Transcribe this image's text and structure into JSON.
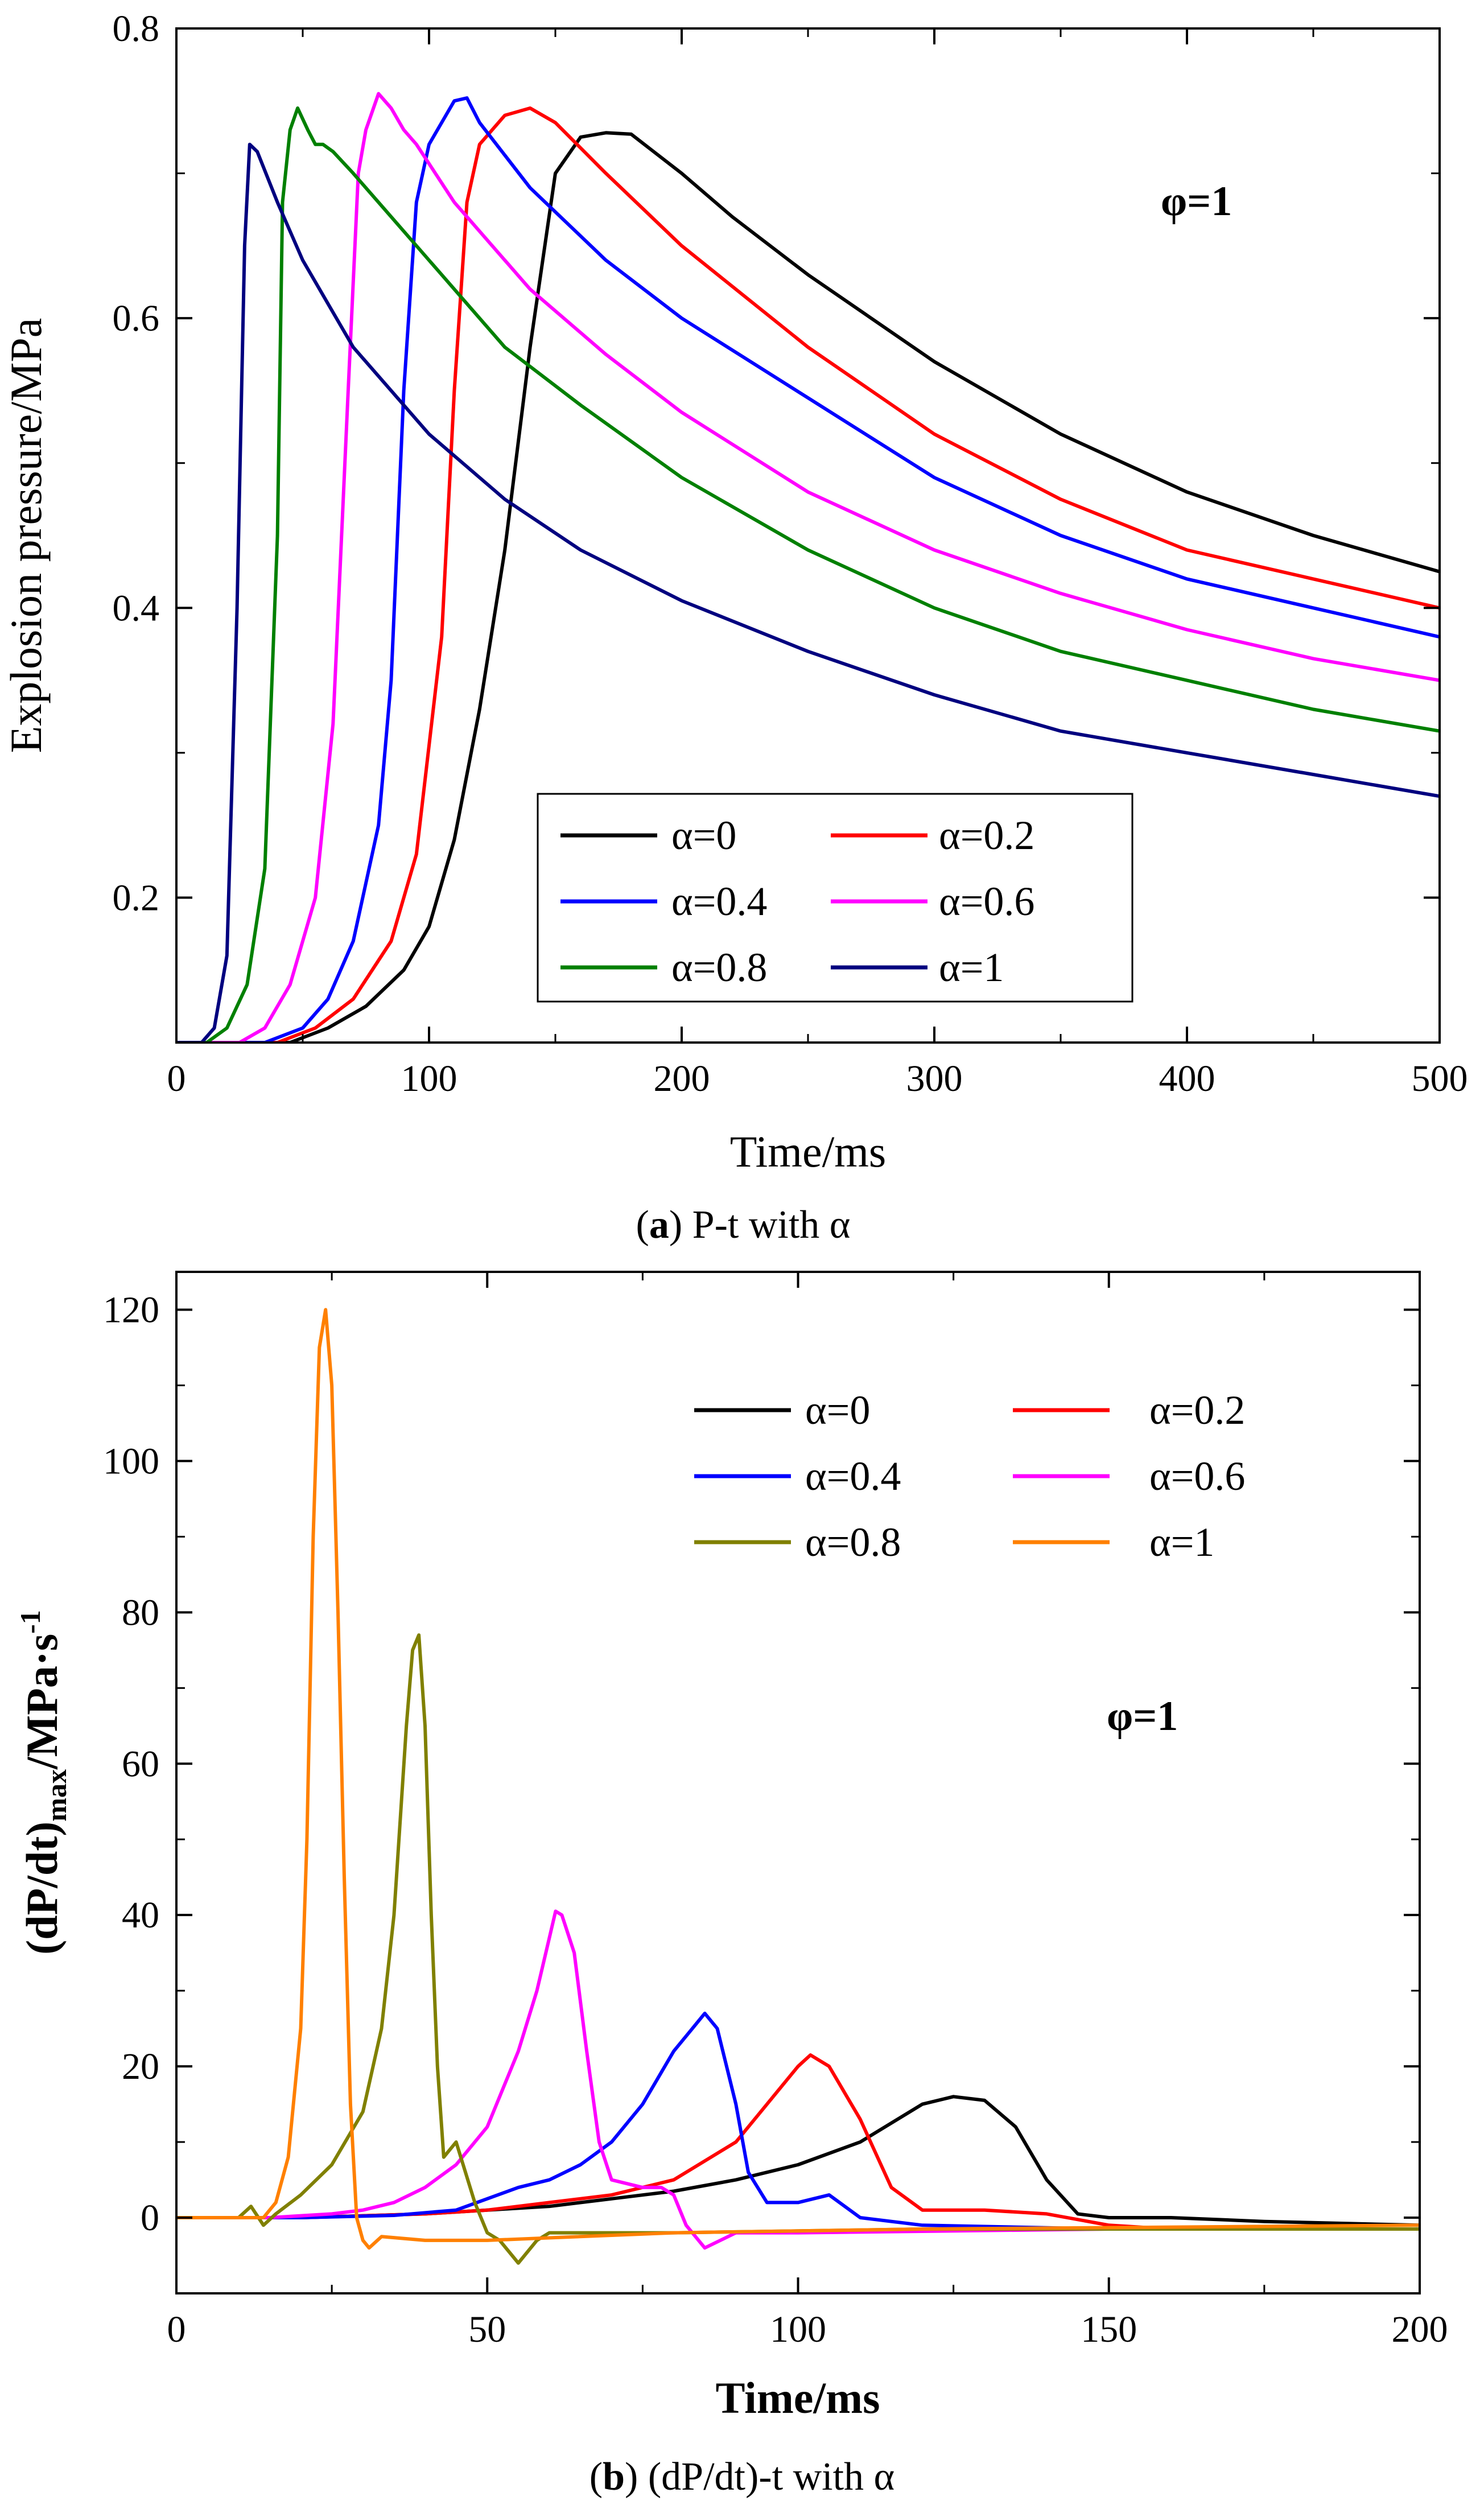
{
  "chart_data": [
    {
      "type": "line",
      "caption": {
        "tag": "a",
        "text": " P-t with α"
      },
      "xlabel": "Time/ms",
      "ylabel": "Explosion pressure/MPa",
      "xlim": [
        0,
        500
      ],
      "ylim": [
        0.1,
        0.8
      ],
      "x_ticks": [
        0,
        100,
        200,
        300,
        400,
        500
      ],
      "y_ticks": [
        0.2,
        0.4,
        0.6,
        0.8
      ],
      "y_tick_labels": [
        "0.2",
        "0.4",
        "0.6",
        "0.8"
      ],
      "annotation": "φ=1",
      "legend_position": "bottom-center",
      "series": [
        {
          "name": "α=0",
          "color": "#000000",
          "x": [
            0,
            30,
            45,
            60,
            75,
            90,
            100,
            110,
            120,
            130,
            140,
            150,
            160,
            170,
            180,
            200,
            220,
            250,
            300,
            350,
            400,
            450,
            500
          ],
          "values": [
            0.1,
            0.1,
            0.1,
            0.11,
            0.125,
            0.15,
            0.18,
            0.24,
            0.33,
            0.44,
            0.58,
            0.7,
            0.725,
            0.728,
            0.727,
            0.7,
            0.67,
            0.63,
            0.57,
            0.52,
            0.48,
            0.45,
            0.425
          ]
        },
        {
          "name": "α=0.2",
          "color": "#ff0000",
          "x": [
            0,
            25,
            40,
            55,
            70,
            85,
            95,
            105,
            110,
            115,
            120,
            130,
            140,
            150,
            170,
            200,
            250,
            300,
            350,
            400,
            450,
            500
          ],
          "values": [
            0.1,
            0.1,
            0.1,
            0.11,
            0.13,
            0.17,
            0.23,
            0.38,
            0.55,
            0.68,
            0.72,
            0.74,
            0.745,
            0.735,
            0.7,
            0.65,
            0.58,
            0.52,
            0.475,
            0.44,
            0.42,
            0.4
          ]
        },
        {
          "name": "α=0.4",
          "color": "#0000ff",
          "x": [
            0,
            20,
            35,
            50,
            60,
            70,
            80,
            85,
            90,
            95,
            100,
            110,
            115,
            120,
            140,
            170,
            200,
            250,
            300,
            350,
            400,
            450,
            500
          ],
          "values": [
            0.1,
            0.1,
            0.1,
            0.11,
            0.13,
            0.17,
            0.25,
            0.35,
            0.55,
            0.68,
            0.72,
            0.75,
            0.752,
            0.735,
            0.69,
            0.64,
            0.6,
            0.545,
            0.49,
            0.45,
            0.42,
            0.4,
            0.38
          ]
        },
        {
          "name": "α=0.6",
          "color": "#ff00ff",
          "x": [
            0,
            15,
            25,
            35,
            45,
            55,
            62,
            68,
            72,
            75,
            80,
            85,
            90,
            95,
            110,
            140,
            170,
            200,
            250,
            300,
            350,
            400,
            450,
            500
          ],
          "values": [
            0.1,
            0.1,
            0.1,
            0.11,
            0.14,
            0.2,
            0.32,
            0.55,
            0.7,
            0.73,
            0.755,
            0.745,
            0.73,
            0.72,
            0.68,
            0.62,
            0.575,
            0.535,
            0.48,
            0.44,
            0.41,
            0.385,
            0.365,
            0.35
          ]
        },
        {
          "name": "α=0.8",
          "color": "#008000",
          "x": [
            0,
            12,
            20,
            28,
            35,
            40,
            42,
            45,
            48,
            52,
            55,
            58,
            62,
            70,
            80,
            100,
            130,
            160,
            200,
            250,
            300,
            350,
            400,
            450,
            500
          ],
          "values": [
            0.1,
            0.1,
            0.11,
            0.14,
            0.22,
            0.45,
            0.68,
            0.73,
            0.745,
            0.73,
            0.72,
            0.72,
            0.715,
            0.7,
            0.68,
            0.64,
            0.58,
            0.54,
            0.49,
            0.44,
            0.4,
            0.37,
            0.35,
            0.33,
            0.315
          ]
        },
        {
          "name": "α=1",
          "color": "#00007f",
          "x": [
            0,
            10,
            15,
            20,
            24,
            27,
            29,
            32,
            40,
            50,
            70,
            100,
            130,
            160,
            200,
            250,
            300,
            350,
            400,
            450,
            500
          ],
          "values": [
            0.1,
            0.1,
            0.11,
            0.16,
            0.4,
            0.65,
            0.72,
            0.715,
            0.68,
            0.64,
            0.58,
            0.52,
            0.475,
            0.44,
            0.405,
            0.37,
            0.34,
            0.315,
            0.3,
            0.285,
            0.27
          ]
        }
      ]
    },
    {
      "type": "line",
      "caption": {
        "tag": "b",
        "text": " (dP/dt)-t with α"
      },
      "xlabel": "Time/ms",
      "ylabel": "(dP/dt)max/MPa·s-1",
      "ylabel_parts": {
        "main": "(dP/dt)",
        "sub": "max",
        "rest": "/MPa·s",
        "sup": "-1"
      },
      "xlim": [
        0,
        200
      ],
      "ylim": [
        -10,
        125
      ],
      "x_ticks": [
        0,
        50,
        100,
        150,
        200
      ],
      "y_ticks": [
        0,
        20,
        40,
        60,
        80,
        100,
        120
      ],
      "annotation": "φ=1",
      "legend_position": "top-right",
      "series": [
        {
          "name": "α=0",
          "color": "#000000",
          "x": [
            0,
            20,
            40,
            50,
            60,
            70,
            80,
            90,
            100,
            110,
            115,
            120,
            125,
            130,
            135,
            140,
            145,
            150,
            160,
            175,
            200
          ],
          "values": [
            0,
            0,
            0.5,
            1,
            1.5,
            2.5,
            3.5,
            5,
            7,
            10,
            12.5,
            15,
            16,
            15.5,
            12,
            5,
            0.5,
            0,
            0,
            -0.5,
            -1
          ]
        },
        {
          "name": "α=0.2",
          "color": "#ff0000",
          "x": [
            0,
            20,
            40,
            50,
            60,
            70,
            80,
            90,
            95,
            100,
            102,
            105,
            110,
            115,
            120,
            130,
            140,
            150,
            160,
            200
          ],
          "values": [
            0,
            0,
            0.5,
            1,
            2,
            3,
            5,
            10,
            15,
            20,
            21.5,
            20,
            13,
            4,
            1,
            1,
            0.5,
            -1,
            -1.5,
            -1.5
          ]
        },
        {
          "name": "α=0.4",
          "color": "#0000ff",
          "x": [
            0,
            20,
            35,
            45,
            50,
            55,
            60,
            65,
            70,
            75,
            80,
            83,
            85,
            87,
            90,
            92,
            95,
            100,
            105,
            110,
            120,
            150,
            200
          ],
          "values": [
            0,
            0,
            0.3,
            1,
            2.5,
            4,
            5,
            7,
            10,
            15,
            22,
            25,
            27,
            25,
            15,
            6,
            2,
            2,
            3,
            0,
            -1,
            -1.5,
            -1.5
          ]
        },
        {
          "name": "α=0.6",
          "color": "#ff00ff",
          "x": [
            0,
            15,
            25,
            30,
            35,
            40,
            45,
            50,
            55,
            58,
            60,
            61,
            62,
            64,
            66,
            68,
            70,
            75,
            78,
            80,
            82,
            85,
            90,
            100,
            150,
            200
          ],
          "values": [
            0,
            0,
            0.5,
            1,
            2,
            4,
            7,
            12,
            22,
            30,
            37,
            40.5,
            40,
            35,
            22,
            10,
            5,
            4,
            4,
            3,
            -1,
            -4,
            -2,
            -2,
            -1.5,
            -1.5
          ]
        },
        {
          "name": "α=0.8",
          "color": "#808000",
          "x": [
            0,
            10,
            12,
            14,
            16,
            20,
            25,
            30,
            33,
            35,
            37,
            38,
            39,
            40,
            41,
            42,
            43,
            45,
            48,
            50,
            52,
            55,
            58,
            60,
            80,
            120,
            200
          ],
          "values": [
            0,
            0,
            1.5,
            -1,
            0.5,
            3,
            7,
            14,
            25,
            40,
            65,
            75,
            77,
            65,
            40,
            20,
            8,
            10,
            2,
            -2,
            -3,
            -6,
            -3,
            -2,
            -2,
            -1.5,
            -1.5
          ]
        },
        {
          "name": "α=1",
          "color": "#ff8000",
          "x": [
            0,
            14,
            16,
            18,
            20,
            21,
            22,
            23,
            24,
            25,
            26,
            27,
            28,
            29,
            30,
            31,
            33,
            40,
            50,
            80,
            120,
            200
          ],
          "values": [
            0,
            0,
            2,
            8,
            25,
            50,
            90,
            115,
            120,
            110,
            80,
            45,
            15,
            0,
            -3,
            -4,
            -2.5,
            -3,
            -3,
            -2,
            -1.5,
            -1
          ]
        }
      ]
    }
  ]
}
